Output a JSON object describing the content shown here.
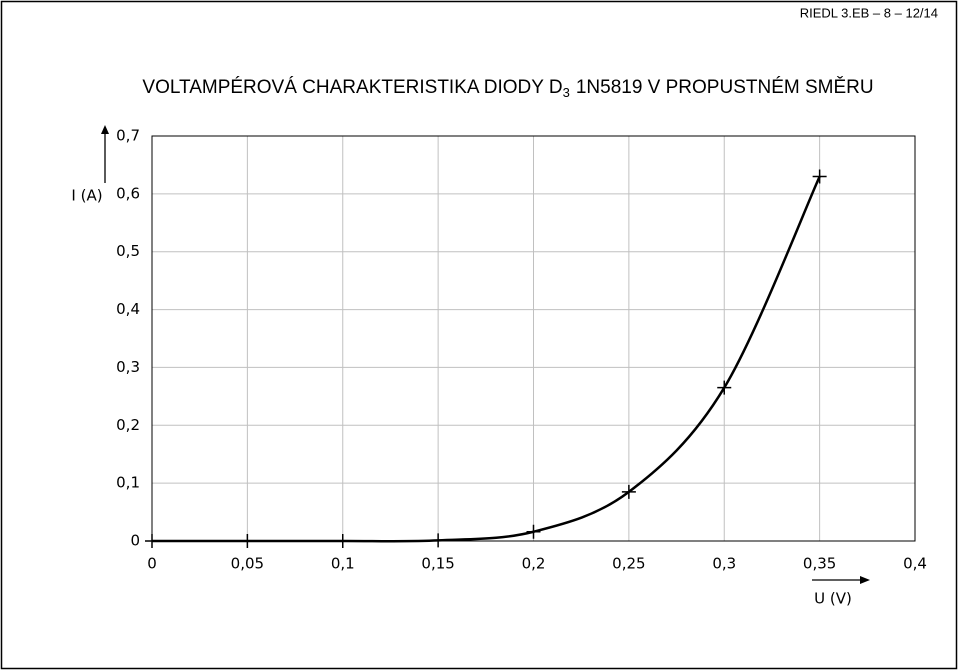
{
  "header": "RIEDL 3.EB – 8 – 12/14",
  "chart_data": {
    "type": "line",
    "title": "VOLTAMPÉROVÁ CHARAKTERISTIKA DIODY D",
    "title_subscript": "3",
    "title_rest": "1N5819 V PROPUSTNÉM SMĚRU",
    "x_label": "U (V)",
    "y_label": "I (A)",
    "x": [
      0,
      0.05,
      0.1,
      0.15,
      0.2,
      0.25,
      0.3,
      0.35
    ],
    "series": [
      {
        "name": "I",
        "color": "#000000",
        "values": [
          0,
          0,
          0,
          0.001,
          0.016,
          0.085,
          0.265,
          0.63
        ]
      }
    ],
    "xlim": [
      0,
      0.4
    ],
    "xticks": [
      0,
      {
        "value": 0.05,
        "label": "0,05"
      },
      {
        "value": 0.1,
        "label": "0,1"
      },
      {
        "value": 0.15,
        "label": "0,15"
      },
      {
        "value": 0.2,
        "label": "0,2"
      },
      {
        "value": 0.25,
        "label": "0,25"
      },
      {
        "value": 0.3,
        "label": "0,3"
      },
      {
        "value": 0.35,
        "label": "0,35"
      },
      {
        "value": 0.4,
        "label": "0,4"
      }
    ],
    "ylim": [
      0,
      0.7
    ],
    "yticks": [
      0,
      {
        "value": 0.1,
        "label": "0,1"
      },
      {
        "value": 0.2,
        "label": "0,2"
      },
      {
        "value": 0.3,
        "label": "0,3"
      },
      {
        "value": 0.4,
        "label": "0,4"
      },
      {
        "value": 0.5,
        "label": "0,5"
      },
      {
        "value": 0.6,
        "label": "0,6"
      },
      {
        "value": 0.7,
        "label": "0,7"
      }
    ],
    "grid": true
  }
}
